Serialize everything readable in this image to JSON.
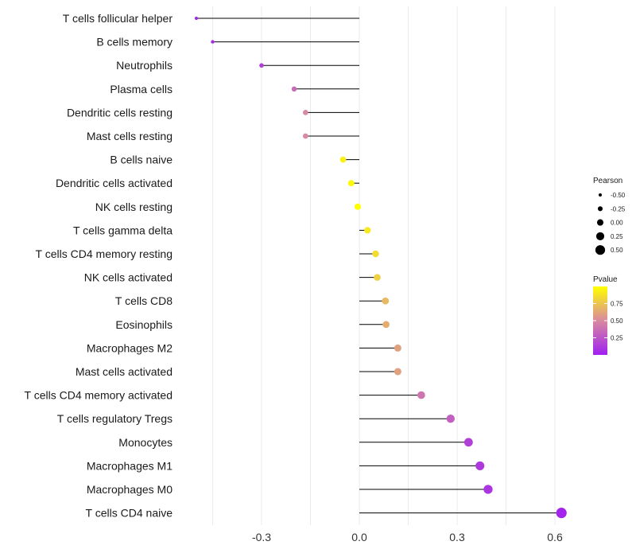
{
  "chart_data": {
    "type": "lollipop",
    "title": "",
    "xlabel": "",
    "ylabel": "",
    "xlim": [
      -0.5,
      0.64
    ],
    "xticks": [
      -0.3,
      0.0,
      0.3,
      0.6
    ],
    "xtick_labels": [
      "-0.3",
      "0.0",
      "0.3",
      "0.6"
    ],
    "grid": true,
    "categories": [
      "T cells follicular helper",
      "B cells memory",
      "Neutrophils",
      "Plasma cells",
      "Dendritic cells resting",
      "Mast cells resting",
      "B cells naive",
      "Dendritic cells activated",
      "NK cells resting",
      "T cells gamma delta",
      "T cells CD4 memory resting",
      "NK cells activated",
      "T cells CD8",
      "Eosinophils",
      "Macrophages M2",
      "Mast cells activated",
      "T cells CD4 memory activated",
      "T cells regulatory  Tregs ",
      "Monocytes",
      "Macrophages M1",
      "Macrophages M0",
      "T cells CD4 naive"
    ],
    "values": [
      -0.5,
      -0.45,
      -0.3,
      -0.2,
      -0.165,
      -0.165,
      -0.05,
      -0.025,
      -0.005,
      0.025,
      0.05,
      0.055,
      0.08,
      0.082,
      0.118,
      0.118,
      0.19,
      0.28,
      0.335,
      0.37,
      0.395,
      0.62
    ],
    "pvalues": [
      0.01,
      0.05,
      0.15,
      0.35,
      0.5,
      0.5,
      0.93,
      0.97,
      1.0,
      0.9,
      0.85,
      0.8,
      0.7,
      0.65,
      0.6,
      0.6,
      0.4,
      0.3,
      0.15,
      0.12,
      0.1,
      0.02
    ],
    "legend": {
      "size": {
        "title": "Pearson",
        "values": [
          -0.5,
          -0.25,
          0.0,
          0.25,
          0.5
        ],
        "labels": [
          "-0.50",
          "-0.25",
          "0.00",
          "0.25",
          "0.50"
        ]
      },
      "color": {
        "title": "Pvalue",
        "ticks": [
          0.25,
          0.5,
          0.75
        ],
        "labels": [
          "0.25",
          "0.50",
          "0.75"
        ],
        "low_color": "#a020f0",
        "mid_color": "#d88aa0",
        "high_color": "#ffff00"
      },
      "placement": "right"
    }
  }
}
